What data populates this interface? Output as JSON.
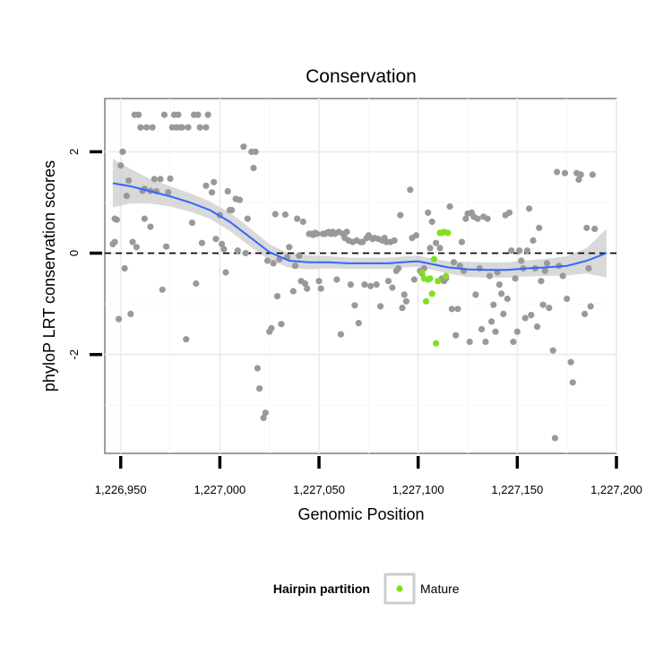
{
  "chart_data": {
    "type": "scatter",
    "title": "Conservation",
    "xlabel": "Genomic Position",
    "ylabel": "phyloP LRT conservation scores",
    "xlim": [
      1226942,
      1227200
    ],
    "ylim": [
      -3.95,
      3.05
    ],
    "x_ticks": [
      1226950,
      1227000,
      1227050,
      1227100,
      1227150,
      1227200
    ],
    "x_tick_labels": [
      "1,226,950",
      "1,227,000",
      "1,227,050",
      "1,227,100",
      "1,227,150",
      "1,227,200"
    ],
    "y_ticks": [
      -2,
      0,
      2
    ],
    "y_tick_labels": [
      "-2",
      "0",
      "2"
    ],
    "y_minor_gridlines": [
      -3,
      -1,
      1
    ],
    "x_minor_gridlines": [
      1226975,
      1227025,
      1227075,
      1227125,
      1227175
    ],
    "reference_line": {
      "y": 0,
      "style": "dashed"
    },
    "grid": true,
    "legend": {
      "title": "Hairpin partition",
      "position": "bottom",
      "entries": [
        {
          "label": "Mature",
          "color": "#80e020"
        }
      ]
    },
    "colors": {
      "other": "#999999",
      "mature": "#80e020",
      "smooth": "#3366ff",
      "ribbon": "#cccccc"
    },
    "series": [
      {
        "name": "Other",
        "points": [
          [
            1226946,
            0.18
          ],
          [
            1226947,
            0.68
          ],
          [
            1226947,
            0.22
          ],
          [
            1226948,
            0.66
          ],
          [
            1226949,
            -1.3
          ],
          [
            1226950,
            1.73
          ],
          [
            1226951,
            2.0
          ],
          [
            1226952,
            -0.3
          ],
          [
            1226953,
            1.13
          ],
          [
            1226954,
            1.43
          ],
          [
            1226955,
            -1.2
          ],
          [
            1226956,
            0.22
          ],
          [
            1226957,
            2.73
          ],
          [
            1226958,
            0.12
          ],
          [
            1226959,
            2.73
          ],
          [
            1226960,
            2.48
          ],
          [
            1226961,
            1.23
          ],
          [
            1226962,
            0.68
          ],
          [
            1226962,
            1.27
          ],
          [
            1226963,
            2.48
          ],
          [
            1226965,
            0.52
          ],
          [
            1226965,
            1.23
          ],
          [
            1226966,
            2.48
          ],
          [
            1226967,
            1.46
          ],
          [
            1226968,
            1.22
          ],
          [
            1226970,
            1.46
          ],
          [
            1226971,
            -0.72
          ],
          [
            1226972,
            2.73
          ],
          [
            1226973,
            0.13
          ],
          [
            1226974,
            1.2
          ],
          [
            1226975,
            1.47
          ],
          [
            1226976,
            2.48
          ],
          [
            1226977,
            2.73
          ],
          [
            1226978,
            2.48
          ],
          [
            1226979,
            2.73
          ],
          [
            1226980,
            2.48
          ],
          [
            1226981,
            2.48
          ],
          [
            1226983,
            -1.7
          ],
          [
            1226984,
            2.48
          ],
          [
            1226986,
            0.6
          ],
          [
            1226987,
            2.73
          ],
          [
            1226988,
            -0.6
          ],
          [
            1226989,
            2.73
          ],
          [
            1226990,
            2.48
          ],
          [
            1226991,
            0.2
          ],
          [
            1226993,
            2.48
          ],
          [
            1226993,
            1.33
          ],
          [
            1226994,
            2.73
          ],
          [
            1226996,
            1.2
          ],
          [
            1226997,
            1.4
          ],
          [
            1226998,
            0.28
          ],
          [
            1227000,
            0.75
          ],
          [
            1227001,
            0.18
          ],
          [
            1227002,
            0.08
          ],
          [
            1227003,
            -0.38
          ],
          [
            1227004,
            1.22
          ],
          [
            1227005,
            0.85
          ],
          [
            1227006,
            0.85
          ],
          [
            1227008,
            1.07
          ],
          [
            1227009,
            0.05
          ],
          [
            1227010,
            1.05
          ],
          [
            1227012,
            2.1
          ],
          [
            1227013,
            0.0
          ],
          [
            1227014,
            0.68
          ],
          [
            1227016,
            2.0
          ],
          [
            1227017,
            1.68
          ],
          [
            1227018,
            2.0
          ],
          [
            1227019,
            -2.27
          ],
          [
            1227020,
            -2.67
          ],
          [
            1227022,
            -3.25
          ],
          [
            1227023,
            -3.15
          ],
          [
            1227024,
            -0.15
          ],
          [
            1227025,
            -1.55
          ],
          [
            1227026,
            -1.48
          ],
          [
            1227027,
            -0.2
          ],
          [
            1227028,
            0.77
          ],
          [
            1227029,
            -0.85
          ],
          [
            1227030,
            -0.12
          ],
          [
            1227031,
            -1.4
          ],
          [
            1227033,
            0.76
          ],
          [
            1227034,
            -0.08
          ],
          [
            1227035,
            0.12
          ],
          [
            1227037,
            -0.75
          ],
          [
            1227038,
            -0.25
          ],
          [
            1227039,
            0.68
          ],
          [
            1227040,
            -0.05
          ],
          [
            1227041,
            -0.55
          ],
          [
            1227042,
            0.62
          ],
          [
            1227043,
            -0.6
          ],
          [
            1227044,
            -0.7
          ],
          [
            1227045,
            0.38
          ],
          [
            1227046,
            0.38
          ],
          [
            1227047,
            0.36
          ],
          [
            1227048,
            0.4
          ],
          [
            1227049,
            0.38
          ],
          [
            1227050,
            -0.55
          ],
          [
            1227051,
            -0.7
          ],
          [
            1227052,
            0.38
          ],
          [
            1227053,
            0.38
          ],
          [
            1227054,
            0.4
          ],
          [
            1227055,
            0.42
          ],
          [
            1227056,
            0.38
          ],
          [
            1227057,
            0.42
          ],
          [
            1227058,
            0.38
          ],
          [
            1227059,
            -0.52
          ],
          [
            1227060,
            0.42
          ],
          [
            1227061,
            -1.6
          ],
          [
            1227062,
            0.38
          ],
          [
            1227063,
            0.3
          ],
          [
            1227064,
            0.42
          ],
          [
            1227065,
            0.25
          ],
          [
            1227066,
            -0.62
          ],
          [
            1227067,
            0.22
          ],
          [
            1227068,
            -1.03
          ],
          [
            1227069,
            0.25
          ],
          [
            1227070,
            -1.38
          ],
          [
            1227071,
            0.22
          ],
          [
            1227072,
            0.22
          ],
          [
            1227073,
            -0.62
          ],
          [
            1227074,
            0.3
          ],
          [
            1227075,
            0.35
          ],
          [
            1227076,
            -0.65
          ],
          [
            1227077,
            0.28
          ],
          [
            1227078,
            0.3
          ],
          [
            1227079,
            -0.62
          ],
          [
            1227080,
            0.28
          ],
          [
            1227081,
            -1.05
          ],
          [
            1227082,
            0.25
          ],
          [
            1227083,
            0.3
          ],
          [
            1227084,
            0.22
          ],
          [
            1227085,
            -0.55
          ],
          [
            1227086,
            0.22
          ],
          [
            1227087,
            -0.68
          ],
          [
            1227088,
            0.25
          ],
          [
            1227089,
            -0.35
          ],
          [
            1227090,
            -0.3
          ],
          [
            1227091,
            0.75
          ],
          [
            1227092,
            -1.08
          ],
          [
            1227093,
            -0.82
          ],
          [
            1227094,
            -0.95
          ],
          [
            1227096,
            1.25
          ],
          [
            1227097,
            0.3
          ],
          [
            1227098,
            -0.52
          ],
          [
            1227099,
            0.35
          ],
          [
            1227101,
            -0.35
          ],
          [
            1227102,
            -0.4
          ],
          [
            1227103,
            -0.3
          ],
          [
            1227105,
            0.8
          ],
          [
            1227106,
            0.1
          ],
          [
            1227107,
            0.62
          ],
          [
            1227109,
            0.2
          ],
          [
            1227111,
            0.1
          ],
          [
            1227112,
            -0.5
          ],
          [
            1227113,
            -0.55
          ],
          [
            1227114,
            -0.5
          ],
          [
            1227116,
            0.92
          ],
          [
            1227117,
            -1.1
          ],
          [
            1227118,
            -0.18
          ],
          [
            1227119,
            -1.62
          ],
          [
            1227120,
            -1.1
          ],
          [
            1227121,
            -0.25
          ],
          [
            1227122,
            0.22
          ],
          [
            1227123,
            -0.35
          ],
          [
            1227124,
            0.68
          ],
          [
            1227125,
            0.78
          ],
          [
            1227126,
            -1.75
          ],
          [
            1227127,
            0.8
          ],
          [
            1227128,
            0.72
          ],
          [
            1227129,
            -0.82
          ],
          [
            1227130,
            0.68
          ],
          [
            1227131,
            -0.3
          ],
          [
            1227132,
            -1.5
          ],
          [
            1227133,
            0.72
          ],
          [
            1227134,
            -1.75
          ],
          [
            1227135,
            0.68
          ],
          [
            1227136,
            -0.45
          ],
          [
            1227137,
            -1.35
          ],
          [
            1227138,
            -1.02
          ],
          [
            1227139,
            -1.55
          ],
          [
            1227140,
            -0.38
          ],
          [
            1227141,
            -0.62
          ],
          [
            1227142,
            -0.8
          ],
          [
            1227143,
            -1.2
          ],
          [
            1227144,
            0.75
          ],
          [
            1227145,
            -0.9
          ],
          [
            1227146,
            0.8
          ],
          [
            1227147,
            0.05
          ],
          [
            1227148,
            -1.75
          ],
          [
            1227149,
            -0.5
          ],
          [
            1227150,
            -1.55
          ],
          [
            1227151,
            0.05
          ],
          [
            1227152,
            -0.15
          ],
          [
            1227153,
            -0.3
          ],
          [
            1227154,
            -1.28
          ],
          [
            1227155,
            0.05
          ],
          [
            1227156,
            0.88
          ],
          [
            1227157,
            -1.22
          ],
          [
            1227158,
            0.25
          ],
          [
            1227159,
            -0.3
          ],
          [
            1227160,
            -1.45
          ],
          [
            1227161,
            0.5
          ],
          [
            1227162,
            -0.55
          ],
          [
            1227163,
            -1.02
          ],
          [
            1227164,
            -0.35
          ],
          [
            1227165,
            -0.2
          ],
          [
            1227166,
            -1.08
          ],
          [
            1227168,
            -1.92
          ],
          [
            1227169,
            -3.65
          ],
          [
            1227170,
            1.6
          ],
          [
            1227171,
            -0.25
          ],
          [
            1227173,
            -0.45
          ],
          [
            1227174,
            1.58
          ],
          [
            1227175,
            -0.9
          ],
          [
            1227177,
            -2.15
          ],
          [
            1227178,
            -2.55
          ],
          [
            1227180,
            1.58
          ],
          [
            1227181,
            1.45
          ],
          [
            1227182,
            1.55
          ],
          [
            1227184,
            -1.2
          ],
          [
            1227185,
            0.5
          ],
          [
            1227186,
            -0.3
          ],
          [
            1227187,
            -1.05
          ],
          [
            1227188,
            1.55
          ],
          [
            1227189,
            0.48
          ]
        ]
      },
      {
        "name": "Mature",
        "points": [
          [
            1227102,
            -0.38
          ],
          [
            1227103,
            -0.5
          ],
          [
            1227104,
            -0.95
          ],
          [
            1227105,
            -0.52
          ],
          [
            1227106,
            -0.5
          ],
          [
            1227107,
            -0.8
          ],
          [
            1227108,
            -0.12
          ],
          [
            1227109,
            -1.78
          ],
          [
            1227110,
            -0.55
          ],
          [
            1227111,
            0.4
          ],
          [
            1227112,
            0.4
          ],
          [
            1227113,
            0.42
          ],
          [
            1227114,
            -0.45
          ],
          [
            1227115,
            0.4
          ]
        ]
      }
    ],
    "smooth": {
      "x": [
        1226946,
        1226955,
        1226965,
        1226975,
        1226985,
        1226995,
        1227005,
        1227015,
        1227025,
        1227035,
        1227045,
        1227055,
        1227065,
        1227075,
        1227085,
        1227095,
        1227100,
        1227105,
        1227115,
        1227125,
        1227135,
        1227145,
        1227155,
        1227165,
        1227175,
        1227185,
        1227195
      ],
      "y": [
        1.38,
        1.32,
        1.22,
        1.12,
        1.0,
        0.85,
        0.62,
        0.32,
        0.02,
        -0.15,
        -0.18,
        -0.18,
        -0.2,
        -0.2,
        -0.2,
        -0.17,
        -0.16,
        -0.2,
        -0.28,
        -0.32,
        -0.33,
        -0.33,
        -0.3,
        -0.28,
        -0.25,
        -0.15,
        0.0
      ],
      "se_low": [
        0.9,
        0.98,
        0.98,
        0.92,
        0.82,
        0.68,
        0.44,
        0.14,
        -0.14,
        -0.29,
        -0.32,
        -0.3,
        -0.31,
        -0.31,
        -0.31,
        -0.28,
        -0.27,
        -0.31,
        -0.4,
        -0.47,
        -0.48,
        -0.48,
        -0.46,
        -0.45,
        -0.44,
        -0.4,
        -0.48
      ],
      "se_high": [
        1.86,
        1.66,
        1.46,
        1.32,
        1.18,
        1.02,
        0.8,
        0.5,
        0.18,
        -0.01,
        -0.04,
        -0.06,
        -0.09,
        -0.09,
        -0.09,
        -0.06,
        -0.05,
        -0.09,
        -0.16,
        -0.17,
        -0.18,
        -0.18,
        -0.14,
        -0.11,
        -0.06,
        0.1,
        0.48
      ]
    }
  }
}
